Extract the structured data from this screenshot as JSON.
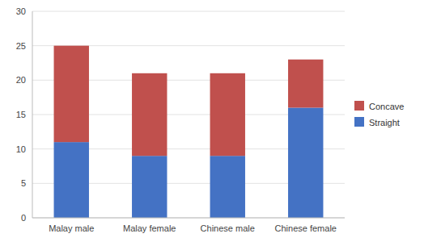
{
  "chart_data": {
    "type": "bar",
    "stacked": true,
    "categories": [
      "Malay male",
      "Malay female",
      "Chinese male",
      "Chinese female"
    ],
    "series": [
      {
        "name": "Straight",
        "color": "#4472C4",
        "values": [
          11,
          9,
          9,
          16
        ]
      },
      {
        "name": "Concave",
        "color": "#C0504D",
        "values": [
          14,
          12,
          12,
          7
        ]
      }
    ],
    "ylim": [
      0,
      30
    ],
    "yticks": [
      0,
      5,
      10,
      15,
      20,
      25,
      30
    ],
    "grid": true,
    "legend": "right"
  }
}
